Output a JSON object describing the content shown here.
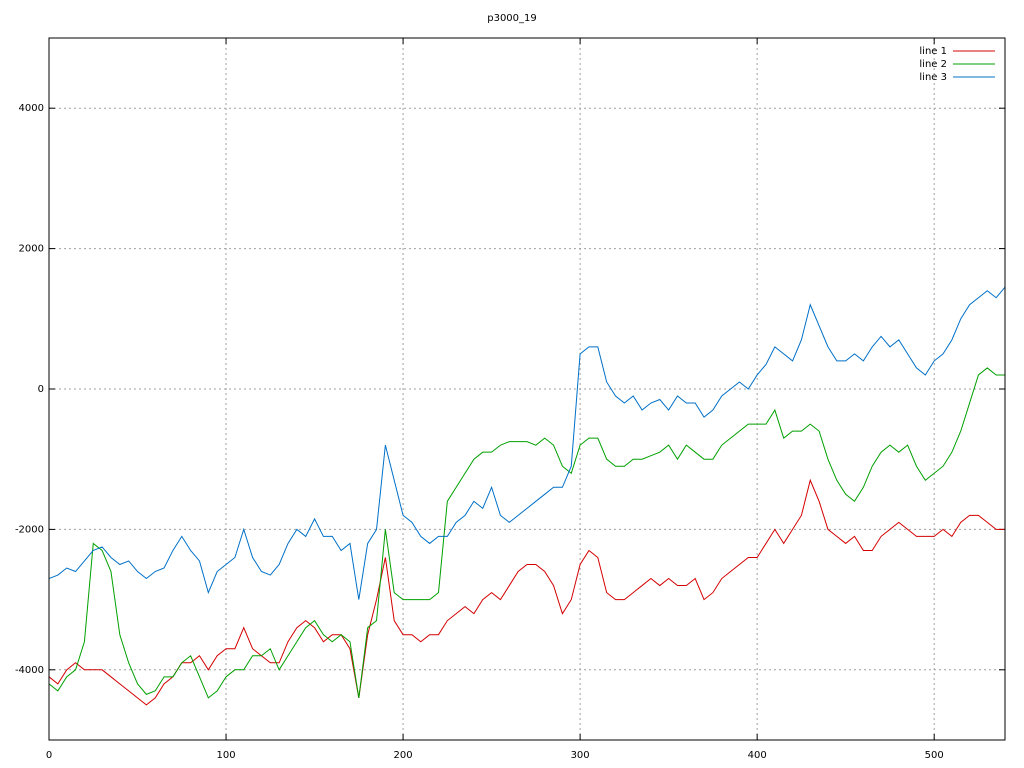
{
  "chart_data": {
    "type": "line",
    "title": "p3000_19",
    "x": [
      0,
      5,
      10,
      15,
      20,
      25,
      30,
      35,
      40,
      45,
      50,
      55,
      60,
      65,
      70,
      75,
      80,
      85,
      90,
      95,
      100,
      105,
      110,
      115,
      120,
      125,
      130,
      135,
      140,
      145,
      150,
      155,
      160,
      165,
      170,
      175,
      180,
      185,
      190,
      195,
      200,
      205,
      210,
      215,
      220,
      225,
      230,
      235,
      240,
      245,
      250,
      255,
      260,
      265,
      270,
      275,
      280,
      285,
      290,
      295,
      300,
      305,
      310,
      315,
      320,
      325,
      330,
      335,
      340,
      345,
      350,
      355,
      360,
      365,
      370,
      375,
      380,
      385,
      390,
      395,
      400,
      405,
      410,
      415,
      420,
      425,
      430,
      435,
      440,
      445,
      450,
      455,
      460,
      465,
      470,
      475,
      480,
      485,
      490,
      495,
      500,
      505,
      510,
      515,
      520,
      525,
      530,
      535,
      540
    ],
    "series": [
      {
        "name": "line 1",
        "color": "#d40000",
        "values": [
          -4100,
          -4200,
          -4000,
          -3900,
          -4000,
          -4000,
          -4000,
          -4100,
          -4200,
          -4300,
          -4400,
          -4500,
          -4400,
          -4200,
          -4100,
          -3900,
          -3900,
          -3800,
          -4000,
          -3800,
          -3700,
          -3700,
          -3400,
          -3700,
          -3800,
          -3900,
          -3900,
          -3600,
          -3400,
          -3300,
          -3400,
          -3600,
          -3500,
          -3500,
          -3700,
          -4400,
          -3500,
          -3000,
          -2400,
          -3300,
          -3500,
          -3500,
          -3600,
          -3500,
          -3500,
          -3300,
          -3200,
          -3100,
          -3200,
          -3000,
          -2900,
          -3000,
          -2800,
          -2600,
          -2500,
          -2500,
          -2600,
          -2800,
          -3200,
          -3000,
          -2500,
          -2300,
          -2400,
          -2900,
          -3000,
          -3000,
          -2900,
          -2800,
          -2700,
          -2800,
          -2700,
          -2800,
          -2800,
          -2700,
          -3000,
          -2900,
          -2700,
          -2600,
          -2500,
          -2400,
          -2400,
          -2200,
          -2000,
          -2200,
          -2000,
          -1800,
          -1300,
          -1600,
          -2000,
          -2100,
          -2200,
          -2100,
          -2300,
          -2300,
          -2100,
          -2000,
          -1900,
          -2000,
          -2100,
          -2100,
          -2100,
          -2000,
          -2100,
          -1900,
          -1800,
          -1800,
          -1900,
          -2000,
          -2000
        ]
      },
      {
        "name": "line 2",
        "color": "#00a000",
        "values": [
          -4200,
          -4300,
          -4100,
          -4000,
          -3600,
          -2200,
          -2300,
          -2600,
          -3500,
          -3900,
          -4200,
          -4350,
          -4300,
          -4100,
          -4100,
          -3900,
          -3800,
          -4100,
          -4400,
          -4300,
          -4100,
          -4000,
          -4000,
          -3800,
          -3800,
          -3700,
          -4000,
          -3800,
          -3600,
          -3400,
          -3300,
          -3500,
          -3600,
          -3500,
          -3600,
          -4400,
          -3400,
          -3300,
          -2000,
          -2900,
          -3000,
          -3000,
          -3000,
          -3000,
          -2900,
          -1600,
          -1400,
          -1200,
          -1000,
          -900,
          -900,
          -800,
          -750,
          -750,
          -750,
          -800,
          -700,
          -800,
          -1100,
          -1200,
          -800,
          -700,
          -700,
          -1000,
          -1100,
          -1100,
          -1000,
          -1000,
          -950,
          -900,
          -800,
          -1000,
          -800,
          -900,
          -1000,
          -1000,
          -800,
          -700,
          -600,
          -500,
          -500,
          -500,
          -300,
          -700,
          -600,
          -600,
          -500,
          -600,
          -1000,
          -1300,
          -1500,
          -1600,
          -1400,
          -1100,
          -900,
          -800,
          -900,
          -800,
          -1100,
          -1300,
          -1200,
          -1100,
          -900,
          -600,
          -200,
          200,
          300,
          200,
          200
        ]
      },
      {
        "name": "line 3",
        "color": "#0070c8",
        "values": [
          -2700,
          -2650,
          -2550,
          -2600,
          -2450,
          -2300,
          -2250,
          -2400,
          -2500,
          -2450,
          -2600,
          -2700,
          -2600,
          -2550,
          -2300,
          -2100,
          -2300,
          -2450,
          -2900,
          -2600,
          -2500,
          -2400,
          -2000,
          -2400,
          -2600,
          -2650,
          -2500,
          -2200,
          -2000,
          -2100,
          -1850,
          -2100,
          -2100,
          -2300,
          -2200,
          -3000,
          -2200,
          -2000,
          -800,
          -1300,
          -1800,
          -1900,
          -2100,
          -2200,
          -2100,
          -2100,
          -1900,
          -1800,
          -1600,
          -1700,
          -1400,
          -1800,
          -1900,
          -1800,
          -1700,
          -1600,
          -1500,
          -1400,
          -1400,
          -1100,
          500,
          600,
          600,
          100,
          -100,
          -200,
          -100,
          -300,
          -200,
          -150,
          -300,
          -100,
          -200,
          -200,
          -400,
          -300,
          -100,
          0,
          100,
          0,
          200,
          350,
          600,
          500,
          400,
          700,
          1200,
          900,
          600,
          400,
          400,
          500,
          400,
          600,
          750,
          600,
          700,
          500,
          300,
          200,
          400,
          500,
          700,
          1000,
          1200,
          1300,
          1400,
          1300,
          1450
        ]
      }
    ],
    "xlim": [
      0,
      540
    ],
    "ylim": [
      -5000,
      5000
    ],
    "xticks": [
      0,
      100,
      200,
      300,
      400,
      500
    ],
    "yticks": [
      -4000,
      -2000,
      0,
      2000,
      4000
    ],
    "grid": true,
    "legend": "top-right"
  }
}
